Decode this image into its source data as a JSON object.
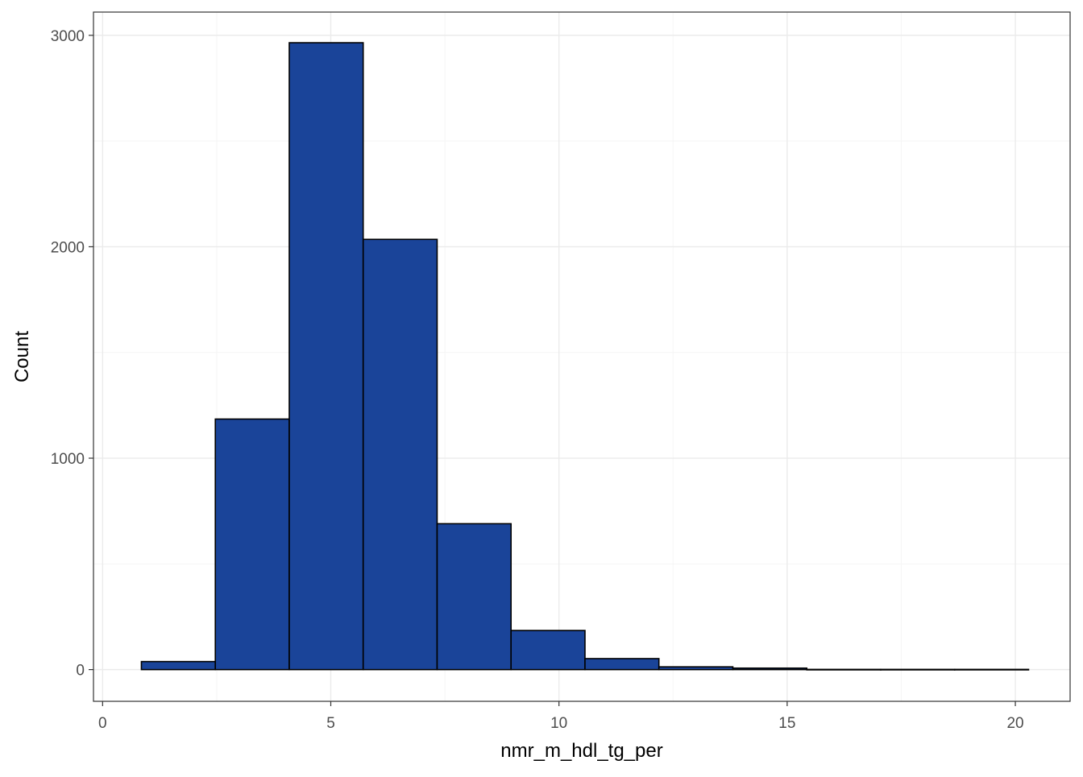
{
  "chart_data": {
    "type": "bar",
    "subtype": "histogram",
    "title": "",
    "xlabel": "nmr_m_hdl_tg_per",
    "ylabel": "Count",
    "xlim": [
      -0.2,
      21.2
    ],
    "ylim": [
      -150,
      3110
    ],
    "x_ticks": [
      0,
      5,
      10,
      15,
      20
    ],
    "x_tick_labels": [
      "0",
      "5",
      "10",
      "15",
      "20"
    ],
    "y_ticks": [
      0,
      1000,
      2000,
      3000
    ],
    "y_tick_labels": [
      "0",
      "1000",
      "2000",
      "3000"
    ],
    "y_minor_ticks": [
      500,
      1500,
      2500
    ],
    "x_minor_ticks": [
      2.5,
      7.5,
      12.5,
      17.5
    ],
    "grid": true,
    "legend": "none",
    "bins": [
      {
        "x_start": 0.85,
        "x_end": 2.47,
        "count": 38
      },
      {
        "x_start": 2.47,
        "x_end": 4.09,
        "count": 1185
      },
      {
        "x_start": 4.09,
        "x_end": 5.71,
        "count": 2965
      },
      {
        "x_start": 5.71,
        "x_end": 7.33,
        "count": 2035
      },
      {
        "x_start": 7.33,
        "x_end": 8.95,
        "count": 690
      },
      {
        "x_start": 8.95,
        "x_end": 10.57,
        "count": 185
      },
      {
        "x_start": 10.57,
        "x_end": 12.19,
        "count": 52
      },
      {
        "x_start": 12.19,
        "x_end": 13.81,
        "count": 13
      },
      {
        "x_start": 13.81,
        "x_end": 15.43,
        "count": 7
      },
      {
        "x_start": 15.43,
        "x_end": 17.05,
        "count": 1
      },
      {
        "x_start": 17.05,
        "x_end": 18.67,
        "count": 1
      },
      {
        "x_start": 18.67,
        "x_end": 20.29,
        "count": 1
      }
    ],
    "colors": {
      "bar_fill": "#1a4499",
      "bar_stroke": "#000000",
      "panel_border": "#333333",
      "grid_major": "#ebebeb",
      "grid_minor": "#f5f5f5",
      "tick_label": "#4d4d4d",
      "axis_title": "#000000"
    }
  }
}
